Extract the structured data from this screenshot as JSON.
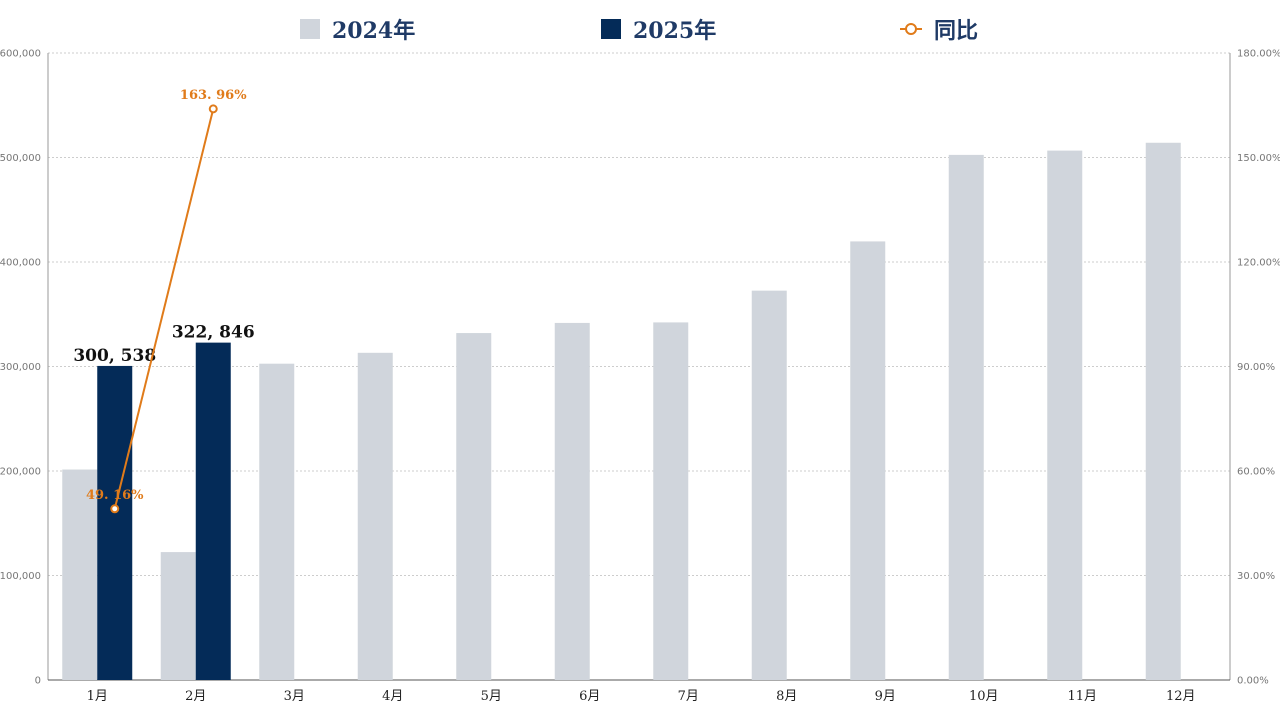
{
  "legend": {
    "series_2024": "2024年",
    "series_2025": "2025年",
    "series_yoy": "同比"
  },
  "colors": {
    "s2024": "#d0d5dc",
    "s2025": "#042b58",
    "yoy": "#e07b1a",
    "grid": "#bdbdbd",
    "axis": "#777777"
  },
  "chart_data": {
    "type": "bar",
    "categories": [
      "1月",
      "2月",
      "3月",
      "4月",
      "5月",
      "6月",
      "7月",
      "8月",
      "9月",
      "10月",
      "11月",
      "12月"
    ],
    "series": [
      {
        "name": "2024年",
        "values": [
          201400,
          122400,
          302700,
          313100,
          332000,
          341700,
          342200,
          372600,
          419700,
          502500,
          506600,
          514100
        ]
      },
      {
        "name": "2025年",
        "values": [
          300538,
          322846,
          null,
          null,
          null,
          null,
          null,
          null,
          null,
          null,
          null,
          null
        ],
        "labels": [
          "300, 538",
          "322, 846"
        ]
      }
    ],
    "line_series": {
      "name": "同比",
      "axis": "right",
      "values": [
        49.16,
        163.96
      ],
      "labels": [
        "49. 16%",
        "163. 96%"
      ]
    },
    "ylim": [
      0,
      600000
    ],
    "y_ticks": [
      "0",
      "100,000",
      "200,000",
      "300,000",
      "400,000",
      "500,000",
      "600,000"
    ],
    "y2lim": [
      0,
      180
    ],
    "y2_ticks": [
      "0.00%",
      "30.00%",
      "60.00%",
      "90.00%",
      "120.00%",
      "150.00%",
      "180.00%"
    ],
    "legend_position": "top",
    "grid": true
  }
}
